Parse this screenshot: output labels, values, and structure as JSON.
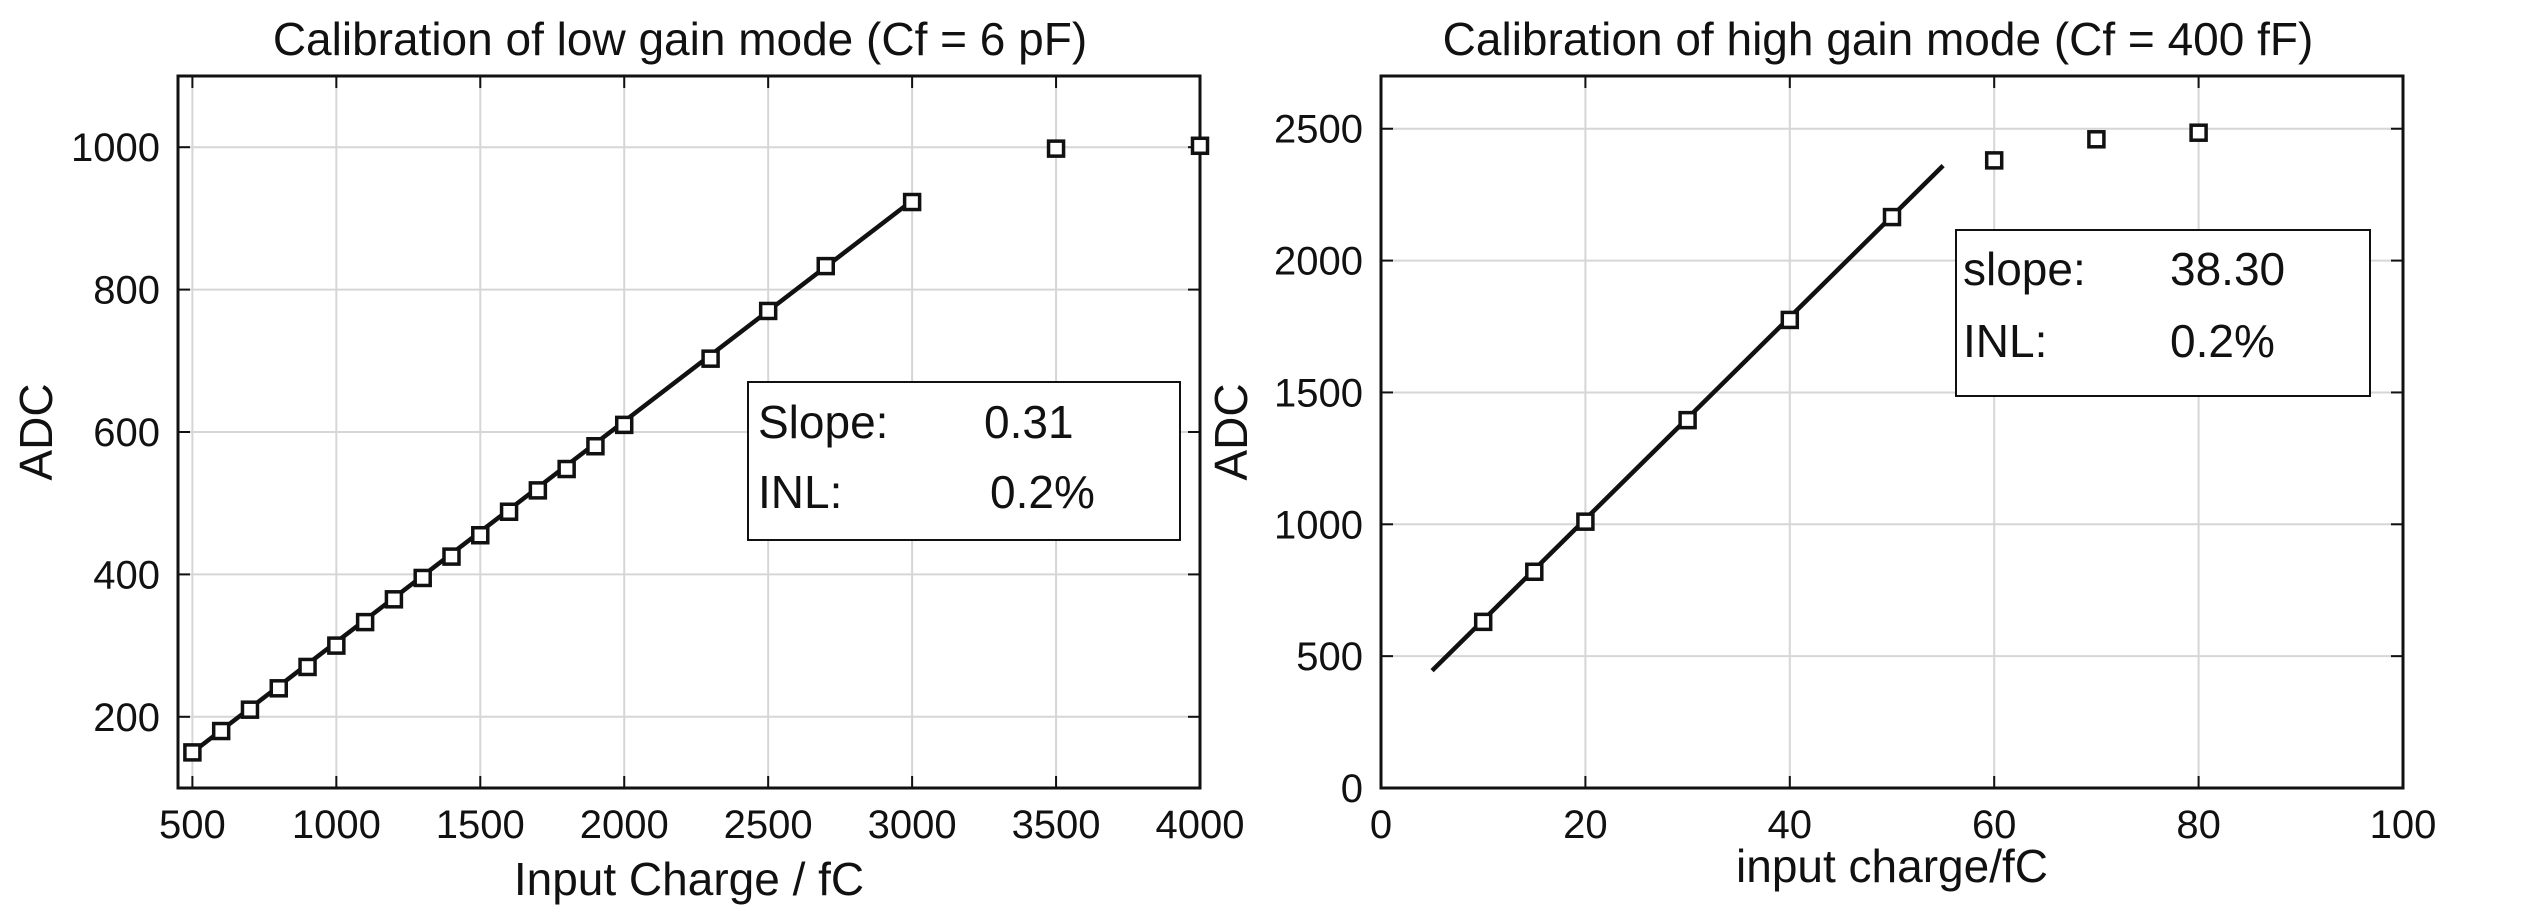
{
  "chart_data": [
    {
      "type": "scatter",
      "title": "Calibration of low gain mode (Cf = 6 pF)",
      "xlabel": "Input Charge / fC",
      "ylabel": "ADC",
      "xlim": [
        450,
        4000
      ],
      "ylim": [
        100,
        1100
      ],
      "xticks": [
        "500",
        "1000",
        "1500",
        "2000",
        "2500",
        "3000",
        "3500",
        "4000"
      ],
      "xtick_values": [
        500,
        1000,
        1500,
        2000,
        2500,
        3000,
        3500,
        4000
      ],
      "yticks": [
        "200",
        "400",
        "600",
        "800",
        "1000"
      ],
      "ytick_values": [
        200,
        400,
        600,
        800,
        1000
      ],
      "grid": true,
      "series": [
        {
          "marker": "square",
          "x": [
            500,
            600,
            700,
            800,
            900,
            1000,
            1100,
            1200,
            1300,
            1400,
            1500,
            1600,
            1700,
            1800,
            1900,
            2000,
            2300,
            2500,
            2700,
            3000,
            3500,
            4000
          ],
          "y": [
            150,
            180,
            210,
            240,
            270,
            300,
            333,
            365,
            395,
            425,
            455,
            488,
            518,
            548,
            580,
            610,
            703,
            770,
            833,
            923,
            998,
            1002
          ]
        }
      ],
      "fit_line": {
        "x": [
          500,
          3000
        ],
        "y": [
          150,
          925
        ]
      },
      "annotation": {
        "rows": [
          {
            "label": "Slope:",
            "value": "0.31"
          },
          {
            "label": "INL:",
            "value": "0.2%"
          }
        ]
      }
    },
    {
      "type": "scatter",
      "title": "Calibration of high gain mode (Cf = 400 fF)",
      "xlabel": "input charge/fC",
      "ylabel": "ADC",
      "xlim": [
        0,
        100
      ],
      "ylim": [
        0,
        2700
      ],
      "xticks": [
        "0",
        "20",
        "40",
        "60",
        "80",
        "100"
      ],
      "xtick_values": [
        0,
        20,
        40,
        60,
        80,
        100
      ],
      "yticks": [
        "0",
        "500",
        "1000",
        "1500",
        "2000",
        "2500"
      ],
      "ytick_values": [
        0,
        500,
        1000,
        1500,
        2000,
        2500
      ],
      "grid": true,
      "series": [
        {
          "marker": "square",
          "x": [
            10,
            15,
            20,
            30,
            40,
            50,
            60,
            70,
            80
          ],
          "y": [
            630,
            820,
            1010,
            1395,
            1775,
            2165,
            2380,
            2460,
            2485
          ]
        }
      ],
      "fit_line": {
        "x": [
          5,
          55
        ],
        "y": [
          445,
          2360
        ]
      },
      "annotation": {
        "rows": [
          {
            "label": "slope:",
            "value": "38.30"
          },
          {
            "label": "INL:",
            "value": "0.2%"
          }
        ]
      }
    }
  ]
}
